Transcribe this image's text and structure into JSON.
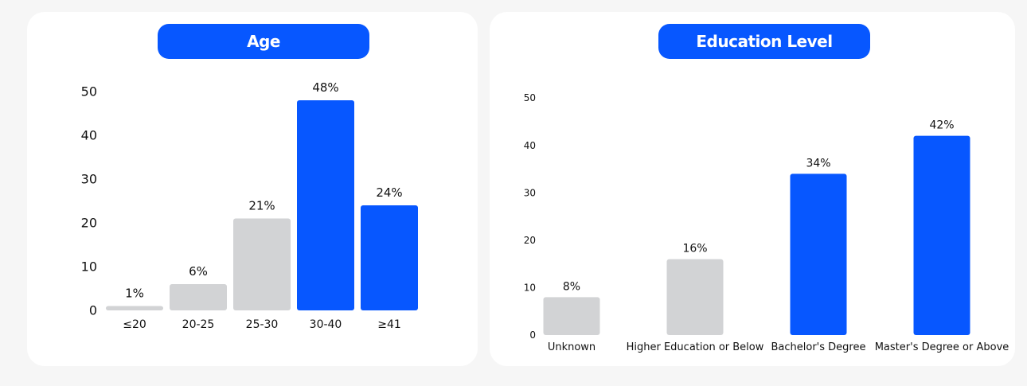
{
  "chart_data": [
    {
      "type": "bar",
      "title": "Age",
      "categories": [
        "≤20",
        "20-25",
        "25-30",
        "30-40",
        "≥41"
      ],
      "values": [
        1,
        6,
        21,
        48,
        24
      ],
      "data_labels": [
        "1%",
        "6%",
        "21%",
        "48%",
        "24%"
      ],
      "highlighted": [
        false,
        false,
        false,
        true,
        true
      ],
      "yticks": [
        "0",
        "10",
        "20",
        "30",
        "40",
        "50"
      ],
      "ylim": [
        0,
        50
      ],
      "grid": false,
      "colors": {
        "highlight": "#0757ff",
        "default": "#d2d3d5"
      }
    },
    {
      "type": "bar",
      "title": "Education Level",
      "categories": [
        "Unknown",
        "Higher Education or Below",
        "Bachelor's Degree",
        "Master's Degree or Above"
      ],
      "values": [
        8,
        16,
        34,
        42
      ],
      "data_labels": [
        "8%",
        "16%",
        "34%",
        "42%"
      ],
      "highlighted": [
        false,
        false,
        true,
        true
      ],
      "yticks": [
        "0",
        "10",
        "20",
        "30",
        "40",
        "50"
      ],
      "ylim": [
        0,
        50
      ],
      "grid": false,
      "colors": {
        "highlight": "#0757ff",
        "default": "#d2d3d5"
      }
    }
  ]
}
